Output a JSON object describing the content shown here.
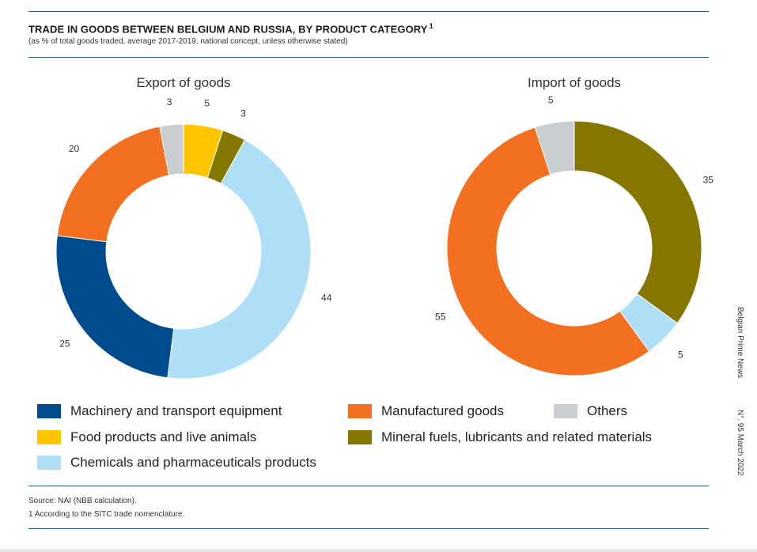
{
  "header": {
    "title": "TRADE IN GOODS BETWEEN BELGIUM AND RUSSIA, BY PRODUCT CATEGORY",
    "title_footnote": "1",
    "subtitle": "(as % of total goods traded, average 2017-2019, national concept, unless otherwise stated)"
  },
  "colors": {
    "Machinery and transport equipment": "#004b8d",
    "Food products and live animals": "#ffc600",
    "Chemicals and pharmaceuticals products": "#aedff7",
    "Manufactured goods": "#f37021",
    "Mineral fuels, lubricants and related materials": "#857600",
    "Others": "#c8cdd2"
  },
  "chart_data": [
    {
      "type": "pie",
      "title": "Export of goods",
      "slices": [
        {
          "category": "Food products and live animals",
          "value": 5
        },
        {
          "category": "Mineral fuels, lubricants and related materials",
          "value": 3
        },
        {
          "category": "Chemicals and pharmaceuticals products",
          "value": 44
        },
        {
          "category": "Machinery and transport equipment",
          "value": 25
        },
        {
          "category": "Manufactured goods",
          "value": 20
        },
        {
          "category": "Others",
          "value": 3
        }
      ]
    },
    {
      "type": "pie",
      "title": "Import of goods",
      "slices": [
        {
          "category": "Mineral fuels, lubricants and related materials",
          "value": 35
        },
        {
          "category": "Chemicals and pharmaceuticals products",
          "value": 5
        },
        {
          "category": "Manufactured goods",
          "value": 55
        },
        {
          "category": "Others",
          "value": 5
        }
      ]
    }
  ],
  "legend": [
    "Machinery and transport equipment",
    "Manufactured goods",
    "Others",
    "Food products and live animals",
    "Mineral fuels, lubricants and related materials",
    "Chemicals and pharmaceuticals products"
  ],
  "footer": {
    "source": "Source: NAI (NBB calculation).",
    "note": "1  According to the SITC trade nomenclature."
  },
  "side": {
    "publication": "Belgian Prime News",
    "issue": "N°. 95   March 2022"
  }
}
